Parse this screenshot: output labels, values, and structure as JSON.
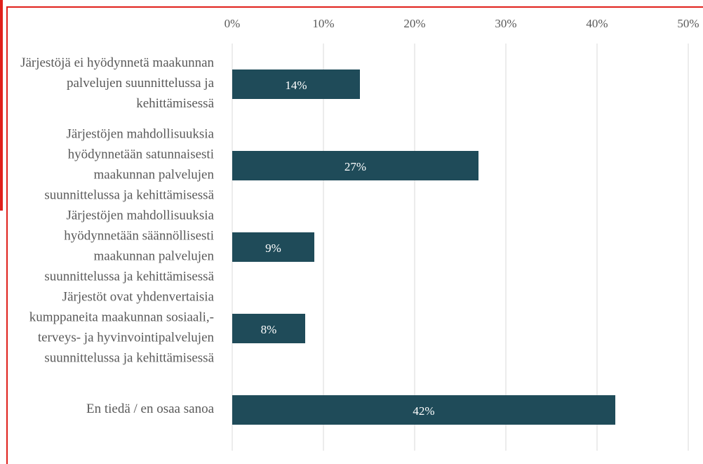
{
  "chart_data": {
    "type": "barh",
    "categories": [
      "Järjestöjä ei hyödynnetä maakunnan palvelujen suunnittelussa ja kehittämisessä",
      "Järjestöjen mahdollisuuksia hyödynnetään satunnaisesti maakunnan palvelujen suunnittelussa ja kehittämisessä",
      "Järjestöjen mahdollisuuksia hyödynnetään säännöllisesti maakunnan palvelujen suunnittelussa ja kehittämisessä",
      "Järjestöt ovat yhdenvertaisia kumppaneita maakunnan sosiaali,- terveys- ja hyvinvointipalvelujen suunnittelussa ja kehittämisessä",
      "En tiedä / en osaa sanoa"
    ],
    "values": [
      14,
      27,
      9,
      8,
      42
    ],
    "value_labels": [
      "14%",
      "27%",
      "9%",
      "8%",
      "42%"
    ],
    "color": "#1f4b59",
    "xlim": [
      0,
      50
    ],
    "xticks": [
      {
        "value": 0,
        "label": "0%"
      },
      {
        "value": 10,
        "label": "10%"
      },
      {
        "value": 20,
        "label": "20%"
      },
      {
        "value": 30,
        "label": "30%"
      },
      {
        "value": 40,
        "label": "40%"
      },
      {
        "value": 50,
        "label": "50%"
      }
    ],
    "grid": true
  }
}
